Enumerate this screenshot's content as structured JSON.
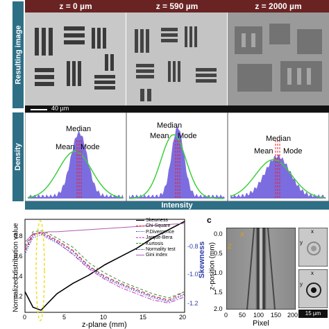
{
  "panel_a": {
    "row_label_image": "Resulting image",
    "row_label_density": "Density",
    "z_labels": [
      "z = 0 µm",
      "z = 590 µm",
      "z = 2000 µm"
    ],
    "scale_bar": "40 µm",
    "intensity_label": "Intensity",
    "annotations": [
      {
        "median": "Median",
        "mean": "Mean",
        "mode": "Mode"
      },
      {
        "median": "Median",
        "mean": "Mean",
        "mode": "Mode"
      },
      {
        "median": "Median",
        "mean": "Mean",
        "mode": "Mode"
      }
    ],
    "colors": {
      "band": "#2e6f86",
      "hist": "#5a48d8",
      "fit": "#3ccf3c",
      "lines": "#e8202a"
    }
  },
  "panel_b": {
    "ylabel": "Normalized distribution value",
    "y2label": "Skewness",
    "xlabel": "z-plane (mm)",
    "xticks": [
      "0",
      "5",
      "10",
      "15",
      "20"
    ],
    "yticks": [
      "0.2",
      "0.4",
      "0.6",
      "0.8"
    ],
    "y2ticks": [
      "-0.8",
      "-1.0",
      "-1.2"
    ],
    "legend": [
      "Skewness",
      "Chi-Square",
      "P.Divergence",
      "Jarque-Bera",
      "Kurtosis",
      "Normality test",
      "Gini index"
    ]
  },
  "panel_c": {
    "letter": "c",
    "ylabel": "z-position (mm)",
    "xlabel": "Pixel",
    "xticks": [
      "0",
      "50",
      "100",
      "150",
      "200"
    ],
    "yticks": [
      "0.0",
      "0.5",
      "1.0",
      "1.5",
      "2.0"
    ],
    "axis_x": "X",
    "axis_y": "y",
    "axis_z": "Z",
    "inset_x": "x",
    "inset_y": "y",
    "scale_bar": "15 µm"
  },
  "chart_data": {
    "type": "line",
    "xlabel": "z-plane (mm)",
    "ylabel": "Normalized distribution value",
    "xlim": [
      0,
      20
    ],
    "ylim": [
      0.1,
      1.0
    ],
    "series": [
      {
        "name": "Skewness",
        "color": "#000000",
        "x": [
          0,
          1,
          2,
          3,
          4,
          6,
          8,
          10,
          12,
          14,
          16,
          18,
          20
        ],
        "values": [
          0.3,
          0.15,
          0.12,
          0.2,
          0.28,
          0.38,
          0.46,
          0.56,
          0.64,
          0.72,
          0.82,
          0.9,
          0.98
        ]
      },
      {
        "name": "Chi-Square",
        "color": "#e8202a",
        "x": [
          0,
          1,
          2,
          3,
          4,
          6,
          8,
          10,
          12,
          14,
          16,
          18,
          20
        ],
        "values": [
          0.7,
          0.85,
          0.88,
          0.84,
          0.8,
          0.7,
          0.55,
          0.45,
          0.38,
          0.32,
          0.26,
          0.22,
          0.3
        ]
      },
      {
        "name": "P.Divergence",
        "color": "#3a43c8",
        "x": [
          0,
          1,
          2,
          3,
          4,
          6,
          8,
          10,
          12,
          14,
          16,
          18,
          20
        ],
        "values": [
          0.68,
          0.84,
          0.87,
          0.83,
          0.79,
          0.69,
          0.54,
          0.44,
          0.37,
          0.31,
          0.25,
          0.21,
          0.28
        ]
      },
      {
        "name": "Jarque-Bera",
        "color": "#c43ac4",
        "x": [
          0,
          1,
          2,
          3,
          4,
          6,
          8,
          10,
          12,
          14,
          16,
          18,
          20
        ],
        "values": [
          0.72,
          0.86,
          0.86,
          0.82,
          0.78,
          0.66,
          0.52,
          0.42,
          0.34,
          0.28,
          0.22,
          0.19,
          0.25
        ]
      },
      {
        "name": "Kurtosis",
        "color": "#2f8f2f",
        "x": [
          0,
          1,
          2,
          3,
          4,
          6,
          8,
          10,
          12,
          14,
          16,
          18,
          20
        ],
        "values": [
          0.74,
          0.88,
          0.89,
          0.86,
          0.82,
          0.73,
          0.58,
          0.48,
          0.4,
          0.34,
          0.28,
          0.24,
          0.3
        ]
      },
      {
        "name": "Normality test",
        "color": "#1a2a8c",
        "x": [
          0,
          1,
          2,
          3,
          4,
          6,
          8,
          10,
          12,
          14,
          16,
          18,
          20
        ],
        "values": [
          0.66,
          0.82,
          0.85,
          0.81,
          0.77,
          0.67,
          0.53,
          0.43,
          0.36,
          0.3,
          0.24,
          0.2,
          0.27
        ]
      },
      {
        "name": "Gini index",
        "color": "#b05ab0",
        "x": [
          0,
          1,
          2,
          3,
          4,
          6,
          8,
          10,
          12,
          14,
          16,
          18,
          20
        ],
        "values": [
          0.78,
          0.86,
          0.87,
          0.88,
          0.88,
          0.89,
          0.9,
          0.91,
          0.92,
          0.93,
          0.94,
          0.95,
          0.96
        ]
      }
    ]
  }
}
